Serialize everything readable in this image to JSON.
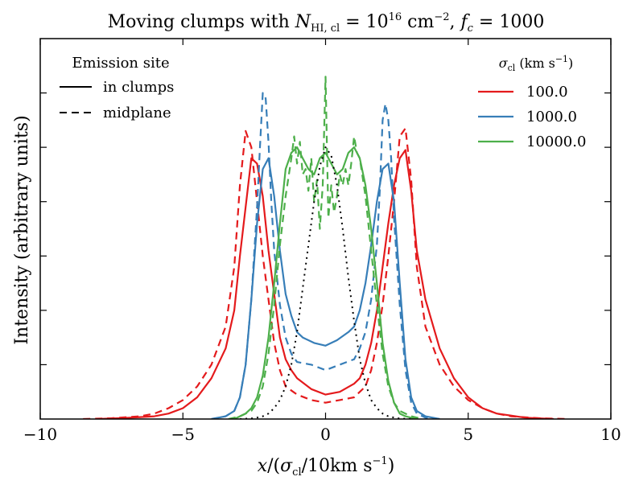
{
  "chart_data": {
    "type": "line",
    "title": "Moving clumps with N_HI,cl = 10^16 cm^-2, f_c = 1000",
    "title_parts": {
      "prefix": "Moving clumps with ",
      "N": "N",
      "N_sub": "HI, cl",
      "eq1": " = 10",
      "exp1": "16",
      "unit": " cm",
      "unit_exp": "−2",
      "comma": ",  ",
      "f": "f",
      "f_sub": "c",
      "eq2": " = 1000"
    },
    "xlabel": "x/(σ_cl/10km s^-1)",
    "xlabel_parts": {
      "x": "x",
      "open": "/(",
      "sigma": "σ",
      "sigma_sub": "cl",
      "rest": "/10km s",
      "exp": "−1",
      "close": ")"
    },
    "ylabel": "Intensity (arbitrary units)",
    "xlim": [
      -10,
      10
    ],
    "ylim": [
      0,
      1.4
    ],
    "xticks": [
      -10,
      -5,
      0,
      5,
      10
    ],
    "xtick_labels": [
      "−10",
      "−5",
      "0",
      "5",
      "10"
    ],
    "yticks": [
      0.2,
      0.4,
      0.6,
      0.8,
      1.0,
      1.2
    ],
    "ytick_labels": [],
    "legend_emission": {
      "title": "Emission site",
      "entries": [
        {
          "label": "in clumps",
          "style": "solid"
        },
        {
          "label": "midplane",
          "style": "dashed"
        }
      ]
    },
    "legend_sigma": {
      "title_sigma": "σ",
      "title_sub": "cl",
      "title_unit": "  (km s",
      "title_exp": "−1",
      "title_close": ")",
      "entries": [
        {
          "label": "100.0",
          "color": "#e41a1c"
        },
        {
          "label": "1000.0",
          "color": "#377eb8"
        },
        {
          "label": "10000.0",
          "color": "#4daf4a"
        }
      ]
    },
    "series": [
      {
        "name": "100.0 in clumps",
        "color": "#e41a1c",
        "style": "solid",
        "x": [
          -8.0,
          -7.0,
          -6.0,
          -5.5,
          -5.0,
          -4.5,
          -4.0,
          -3.5,
          -3.2,
          -3.0,
          -2.8,
          -2.6,
          -2.4,
          -2.2,
          -2.0,
          -1.8,
          -1.6,
          -1.4,
          -1.2,
          -1.0,
          -0.5,
          0.0,
          0.5,
          1.0,
          1.2,
          1.4,
          1.6,
          1.8,
          2.0,
          2.2,
          2.4,
          2.6,
          2.8,
          3.0,
          3.2,
          3.5,
          4.0,
          4.5,
          5.0,
          5.5,
          6.0,
          7.0,
          8.0
        ],
        "y": [
          0.0,
          0.004,
          0.01,
          0.02,
          0.04,
          0.08,
          0.15,
          0.26,
          0.4,
          0.6,
          0.78,
          0.96,
          0.94,
          0.82,
          0.62,
          0.46,
          0.3,
          0.22,
          0.18,
          0.15,
          0.11,
          0.09,
          0.1,
          0.13,
          0.15,
          0.2,
          0.28,
          0.4,
          0.56,
          0.72,
          0.86,
          0.96,
          0.99,
          0.84,
          0.62,
          0.44,
          0.26,
          0.15,
          0.08,
          0.04,
          0.02,
          0.005,
          0.0
        ]
      },
      {
        "name": "100.0 midplane",
        "color": "#e41a1c",
        "style": "dashed",
        "x": [
          -8.5,
          -7.5,
          -6.5,
          -6.0,
          -5.5,
          -5.0,
          -4.5,
          -4.0,
          -3.5,
          -3.2,
          -3.0,
          -2.8,
          -2.6,
          -2.4,
          -2.2,
          -2.0,
          -1.8,
          -1.6,
          -1.4,
          -1.0,
          -0.5,
          0.0,
          0.5,
          1.0,
          1.4,
          1.6,
          1.8,
          2.0,
          2.2,
          2.4,
          2.6,
          2.8,
          3.0,
          3.2,
          3.5,
          4.0,
          4.5,
          5.0,
          5.5,
          6.0,
          6.5,
          7.5,
          8.5
        ],
        "y": [
          0.0,
          0.003,
          0.01,
          0.02,
          0.04,
          0.07,
          0.12,
          0.2,
          0.34,
          0.56,
          0.86,
          1.06,
          1.0,
          0.8,
          0.6,
          0.44,
          0.28,
          0.18,
          0.12,
          0.09,
          0.07,
          0.06,
          0.07,
          0.08,
          0.12,
          0.18,
          0.28,
          0.42,
          0.6,
          0.8,
          1.04,
          1.07,
          0.88,
          0.56,
          0.34,
          0.2,
          0.12,
          0.07,
          0.04,
          0.02,
          0.01,
          0.003,
          0.0
        ]
      },
      {
        "name": "1000.0 in clumps",
        "color": "#377eb8",
        "style": "solid",
        "x": [
          -4.0,
          -3.5,
          -3.2,
          -3.0,
          -2.8,
          -2.6,
          -2.4,
          -2.2,
          -2.0,
          -1.8,
          -1.6,
          -1.4,
          -1.2,
          -1.0,
          -0.8,
          -0.4,
          0.0,
          0.4,
          0.8,
          1.0,
          1.2,
          1.4,
          1.6,
          1.8,
          2.0,
          2.2,
          2.4,
          2.6,
          2.8,
          3.0,
          3.2,
          3.5,
          4.0
        ],
        "y": [
          0.0,
          0.01,
          0.03,
          0.08,
          0.2,
          0.44,
          0.72,
          0.92,
          0.96,
          0.82,
          0.62,
          0.46,
          0.38,
          0.32,
          0.3,
          0.28,
          0.27,
          0.29,
          0.32,
          0.34,
          0.4,
          0.5,
          0.64,
          0.8,
          0.92,
          0.94,
          0.8,
          0.5,
          0.22,
          0.08,
          0.03,
          0.01,
          0.0
        ]
      },
      {
        "name": "1000.0 midplane",
        "color": "#377eb8",
        "style": "dashed",
        "x": [
          -4.0,
          -3.5,
          -3.2,
          -3.0,
          -2.8,
          -2.6,
          -2.4,
          -2.3,
          -2.2,
          -2.1,
          -2.0,
          -1.9,
          -1.8,
          -1.6,
          -1.4,
          -1.2,
          -1.0,
          -0.5,
          0.0,
          0.5,
          1.0,
          1.2,
          1.4,
          1.6,
          1.8,
          1.9,
          2.0,
          2.1,
          2.2,
          2.3,
          2.4,
          2.6,
          2.8,
          3.0,
          3.2,
          3.5,
          4.0
        ],
        "y": [
          0.0,
          0.01,
          0.03,
          0.08,
          0.2,
          0.44,
          0.78,
          1.0,
          1.2,
          1.18,
          1.02,
          0.8,
          0.62,
          0.42,
          0.3,
          0.24,
          0.21,
          0.2,
          0.18,
          0.2,
          0.22,
          0.26,
          0.32,
          0.44,
          0.64,
          0.84,
          1.1,
          1.16,
          1.1,
          0.96,
          0.74,
          0.42,
          0.18,
          0.06,
          0.02,
          0.005,
          0.0
        ]
      },
      {
        "name": "10000.0 in clumps",
        "color": "#4daf4a",
        "style": "solid",
        "x": [
          -3.2,
          -3.0,
          -2.8,
          -2.6,
          -2.4,
          -2.2,
          -2.0,
          -1.8,
          -1.6,
          -1.4,
          -1.2,
          -1.0,
          -0.8,
          -0.6,
          -0.4,
          -0.2,
          0.0,
          0.2,
          0.4,
          0.6,
          0.8,
          1.0,
          1.2,
          1.4,
          1.6,
          1.8,
          2.0,
          2.2,
          2.4,
          2.6,
          2.8,
          3.0,
          3.2
        ],
        "y": [
          0.0,
          0.01,
          0.02,
          0.04,
          0.08,
          0.16,
          0.3,
          0.5,
          0.72,
          0.92,
          0.98,
          1.0,
          0.96,
          0.92,
          0.9,
          0.96,
          0.98,
          0.94,
          0.9,
          0.92,
          0.98,
          1.0,
          0.96,
          0.86,
          0.7,
          0.5,
          0.28,
          0.14,
          0.06,
          0.02,
          0.01,
          0.005,
          0.0
        ]
      },
      {
        "name": "10000.0 midplane",
        "color": "#4daf4a",
        "style": "dashed",
        "x": [
          -3.4,
          -3.0,
          -2.6,
          -2.4,
          -2.2,
          -2.0,
          -1.8,
          -1.6,
          -1.4,
          -1.2,
          -1.1,
          -1.0,
          -0.9,
          -0.8,
          -0.7,
          -0.6,
          -0.5,
          -0.4,
          -0.3,
          -0.2,
          -0.1,
          0.0,
          0.1,
          0.2,
          0.3,
          0.4,
          0.5,
          0.6,
          0.7,
          0.8,
          0.9,
          1.0,
          1.1,
          1.2,
          1.4,
          1.6,
          1.8,
          2.0,
          2.2,
          2.4,
          2.6,
          3.0,
          3.4
        ],
        "y": [
          0.0,
          0.01,
          0.03,
          0.06,
          0.12,
          0.24,
          0.42,
          0.64,
          0.82,
          0.96,
          1.04,
          0.94,
          1.02,
          0.9,
          0.92,
          0.84,
          0.96,
          0.8,
          0.88,
          0.7,
          0.86,
          1.26,
          0.74,
          0.86,
          0.76,
          0.82,
          0.9,
          0.86,
          0.92,
          0.86,
          0.94,
          1.04,
          0.98,
          0.96,
          0.82,
          0.62,
          0.42,
          0.24,
          0.12,
          0.06,
          0.03,
          0.01,
          0.0
        ]
      },
      {
        "name": "reference profile",
        "color": "#000000",
        "style": "dotted",
        "x": [
          -3.0,
          -2.5,
          -2.2,
          -2.0,
          -1.8,
          -1.6,
          -1.4,
          -1.2,
          -1.0,
          -0.8,
          -0.6,
          -0.4,
          -0.2,
          0.0,
          0.2,
          0.4,
          0.6,
          0.8,
          1.0,
          1.2,
          1.4,
          1.6,
          1.8,
          2.0,
          2.2,
          2.5,
          3.0
        ],
        "y": [
          0.0,
          0.003,
          0.01,
          0.02,
          0.04,
          0.07,
          0.12,
          0.2,
          0.32,
          0.48,
          0.64,
          0.8,
          0.93,
          1.0,
          0.97,
          0.86,
          0.7,
          0.52,
          0.36,
          0.22,
          0.13,
          0.07,
          0.04,
          0.02,
          0.01,
          0.003,
          0.0
        ]
      }
    ]
  }
}
